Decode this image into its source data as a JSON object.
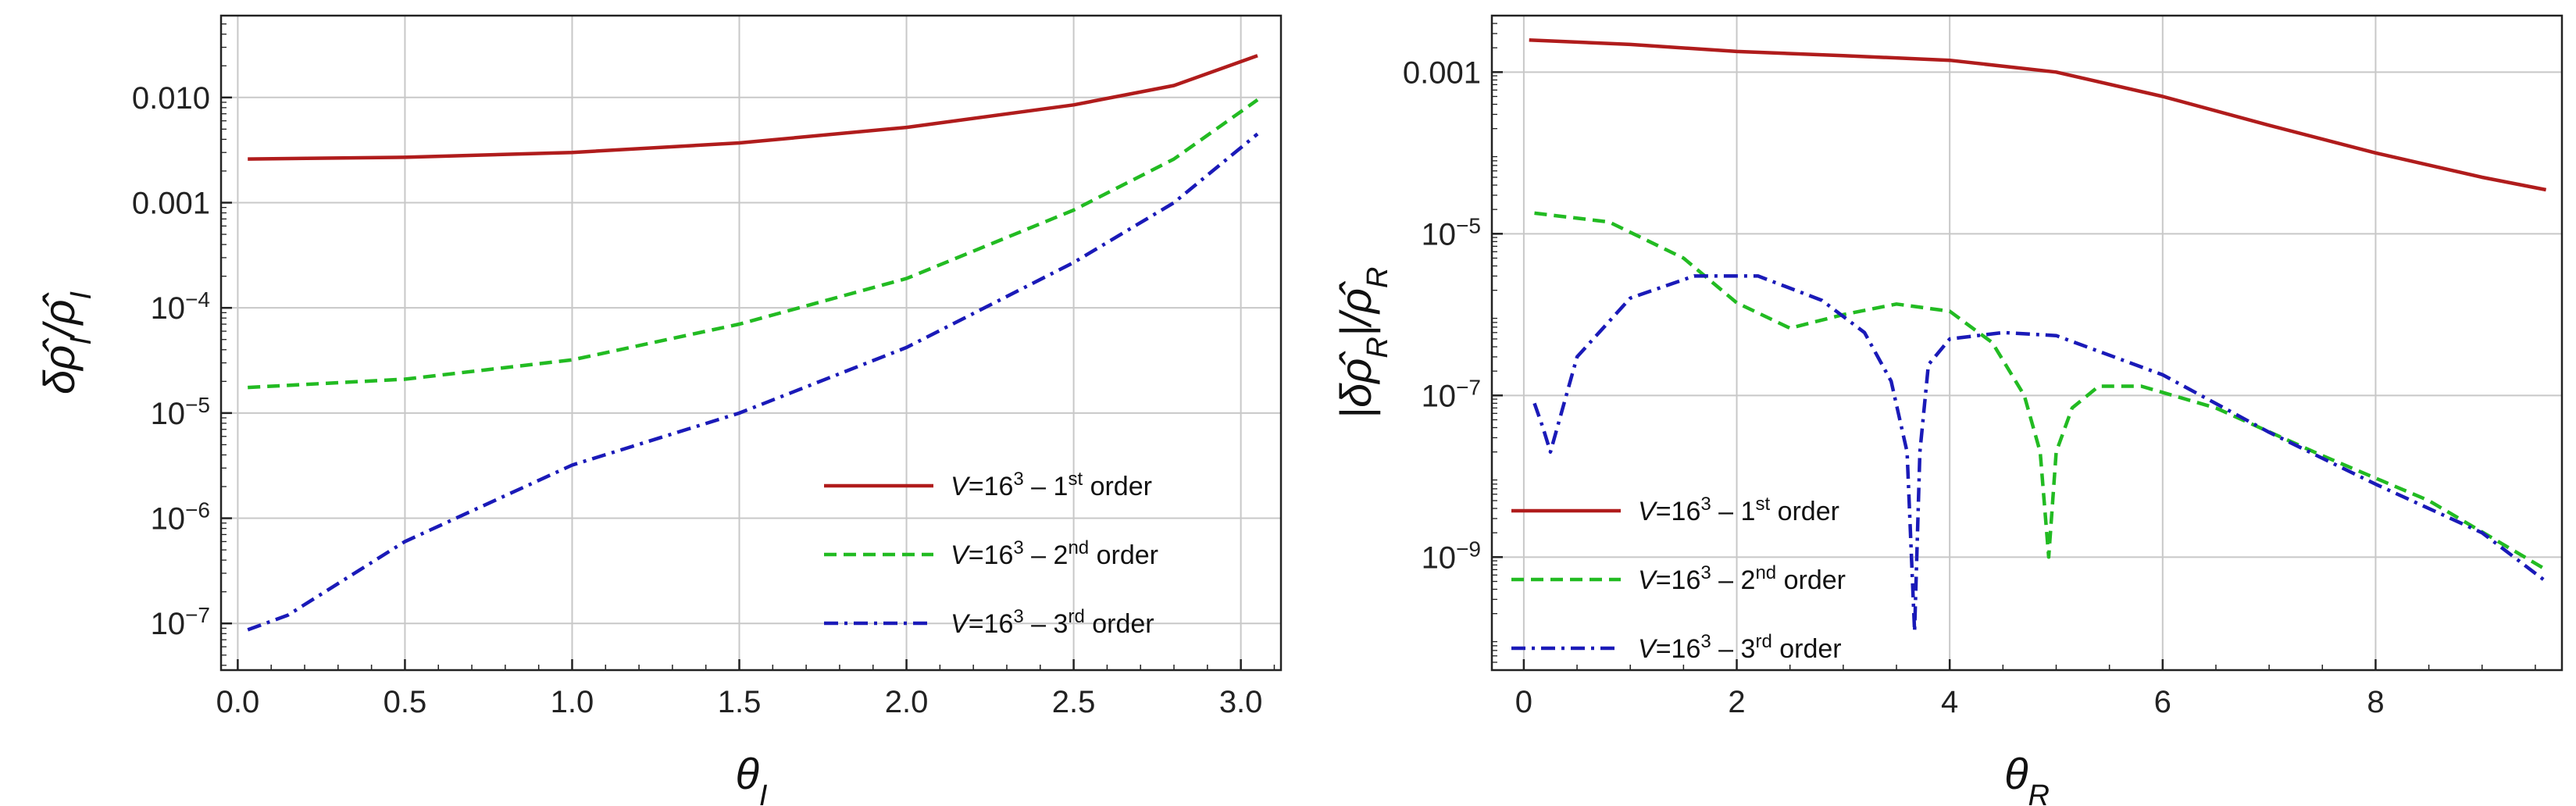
{
  "colors": {
    "first": "#b01c1c",
    "second": "#22bb22",
    "third": "#1a1ab8",
    "grid": "#c8c8c8",
    "frame": "#222222"
  },
  "chart_data": [
    {
      "type": "line",
      "xlabel": "θI",
      "ylabel": "δρ̂I/ρ̂I",
      "y_scale": "log",
      "xlim": [
        -0.05,
        3.12
      ],
      "ylim": [
        3.6e-08,
        0.06
      ],
      "xticks": [
        "0.0",
        "0.5",
        "1.0",
        "1.5",
        "2.0",
        "2.5",
        "3.0"
      ],
      "yticks": [
        {
          "value": 1e-07,
          "label": "10-7"
        },
        {
          "value": 1e-06,
          "label": "10-6"
        },
        {
          "value": 1e-05,
          "label": "10-5"
        },
        {
          "value": 0.0001,
          "label": "10-4"
        },
        {
          "value": 0.001,
          "label": "0.001"
        },
        {
          "value": 0.01,
          "label": "0.010"
        }
      ],
      "grid": true,
      "legend_position": "bottom-right",
      "series": [
        {
          "name": "V=16³ – 1st order",
          "style": "solid",
          "color": "#b01c1c",
          "x": [
            0.03,
            0.5,
            1.0,
            1.5,
            2.0,
            2.5,
            2.8,
            3.05
          ],
          "y": [
            0.0026,
            0.0027,
            0.003,
            0.0037,
            0.0052,
            0.0085,
            0.013,
            0.025
          ]
        },
        {
          "name": "V=16³ – 2nd order",
          "style": "dashed",
          "color": "#22bb22",
          "x": [
            0.03,
            0.5,
            1.0,
            1.5,
            2.0,
            2.5,
            2.8,
            3.05
          ],
          "y": [
            1.75e-05,
            2.1e-05,
            3.2e-05,
            7e-05,
            0.00019,
            0.00085,
            0.0026,
            0.0095
          ]
        },
        {
          "name": "V=16³ – 3rd order",
          "style": "dashdot",
          "color": "#1a1ab8",
          "x": [
            0.03,
            0.15,
            0.5,
            1.0,
            1.5,
            2.0,
            2.5,
            2.8,
            3.05
          ],
          "y": [
            8.7e-08,
            1.2e-07,
            6e-07,
            3.2e-06,
            1e-05,
            4.2e-05,
            0.00027,
            0.001,
            0.0045
          ]
        }
      ]
    },
    {
      "type": "line",
      "xlabel": "θR",
      "ylabel": "|δρ̂R|/ρ̂R",
      "y_scale": "log",
      "xlim": [
        -0.3,
        9.75
      ],
      "ylim": [
        4e-11,
        0.005
      ],
      "xticks": [
        "0",
        "2",
        "4",
        "6",
        "8"
      ],
      "yticks": [
        {
          "value": 1e-09,
          "label": "10-9"
        },
        {
          "value": 1e-07,
          "label": "10-7"
        },
        {
          "value": 1e-05,
          "label": "10-5"
        },
        {
          "value": 0.001,
          "label": "0.001"
        }
      ],
      "grid": true,
      "legend_position": "bottom-left",
      "series": [
        {
          "name": "V=16³ – 1st order",
          "style": "solid",
          "color": "#b01c1c",
          "x": [
            0.05,
            1.0,
            2.0,
            3.0,
            4.0,
            5.0,
            6.0,
            7.0,
            8.0,
            9.0,
            9.6
          ],
          "y": [
            0.0025,
            0.0022,
            0.0018,
            0.0016,
            0.0014,
            0.001,
            0.0005,
            0.00022,
            0.0001,
            5e-05,
            3.5e-05
          ]
        },
        {
          "name": "V=16³ – 2nd order",
          "style": "dashed",
          "color": "#22bb22",
          "x": [
            0.1,
            0.8,
            1.5,
            2.0,
            2.5,
            3.0,
            3.5,
            4.0,
            4.4,
            4.7,
            4.85,
            4.93,
            5.0,
            5.15,
            5.4,
            5.8,
            6.5,
            7.5,
            8.5,
            9.6
          ],
          "y": [
            1.8e-05,
            1.4e-05,
            5e-06,
            1.4e-06,
            6.8e-07,
            1e-06,
            1.35e-06,
            1.1e-06,
            4.5e-07,
            1e-07,
            2e-08,
            1e-09,
            2e-08,
            7e-08,
            1.3e-07,
            1.3e-07,
            7e-08,
            1.8e-08,
            5e-09,
            7e-10
          ]
        },
        {
          "name": "V=16³ – 3rd order",
          "style": "dashdot",
          "color": "#1a1ab8",
          "x": [
            0.1,
            0.18,
            0.25,
            0.5,
            1.0,
            1.6,
            2.2,
            2.8,
            3.2,
            3.45,
            3.6,
            3.67,
            3.72,
            3.8,
            4.0,
            4.5,
            5.0,
            6.0,
            7.0,
            8.0,
            9.0,
            9.6
          ],
          "y": [
            8e-08,
            4e-08,
            2e-08,
            3e-07,
            1.6e-06,
            3e-06,
            3e-06,
            1.5e-06,
            6e-07,
            1.5e-07,
            2e-08,
            1.2e-10,
            2e-08,
            2.4e-07,
            5e-07,
            6e-07,
            5.5e-07,
            1.8e-07,
            3.5e-08,
            8e-09,
            2e-09,
            5e-10
          ]
        }
      ]
    }
  ]
}
